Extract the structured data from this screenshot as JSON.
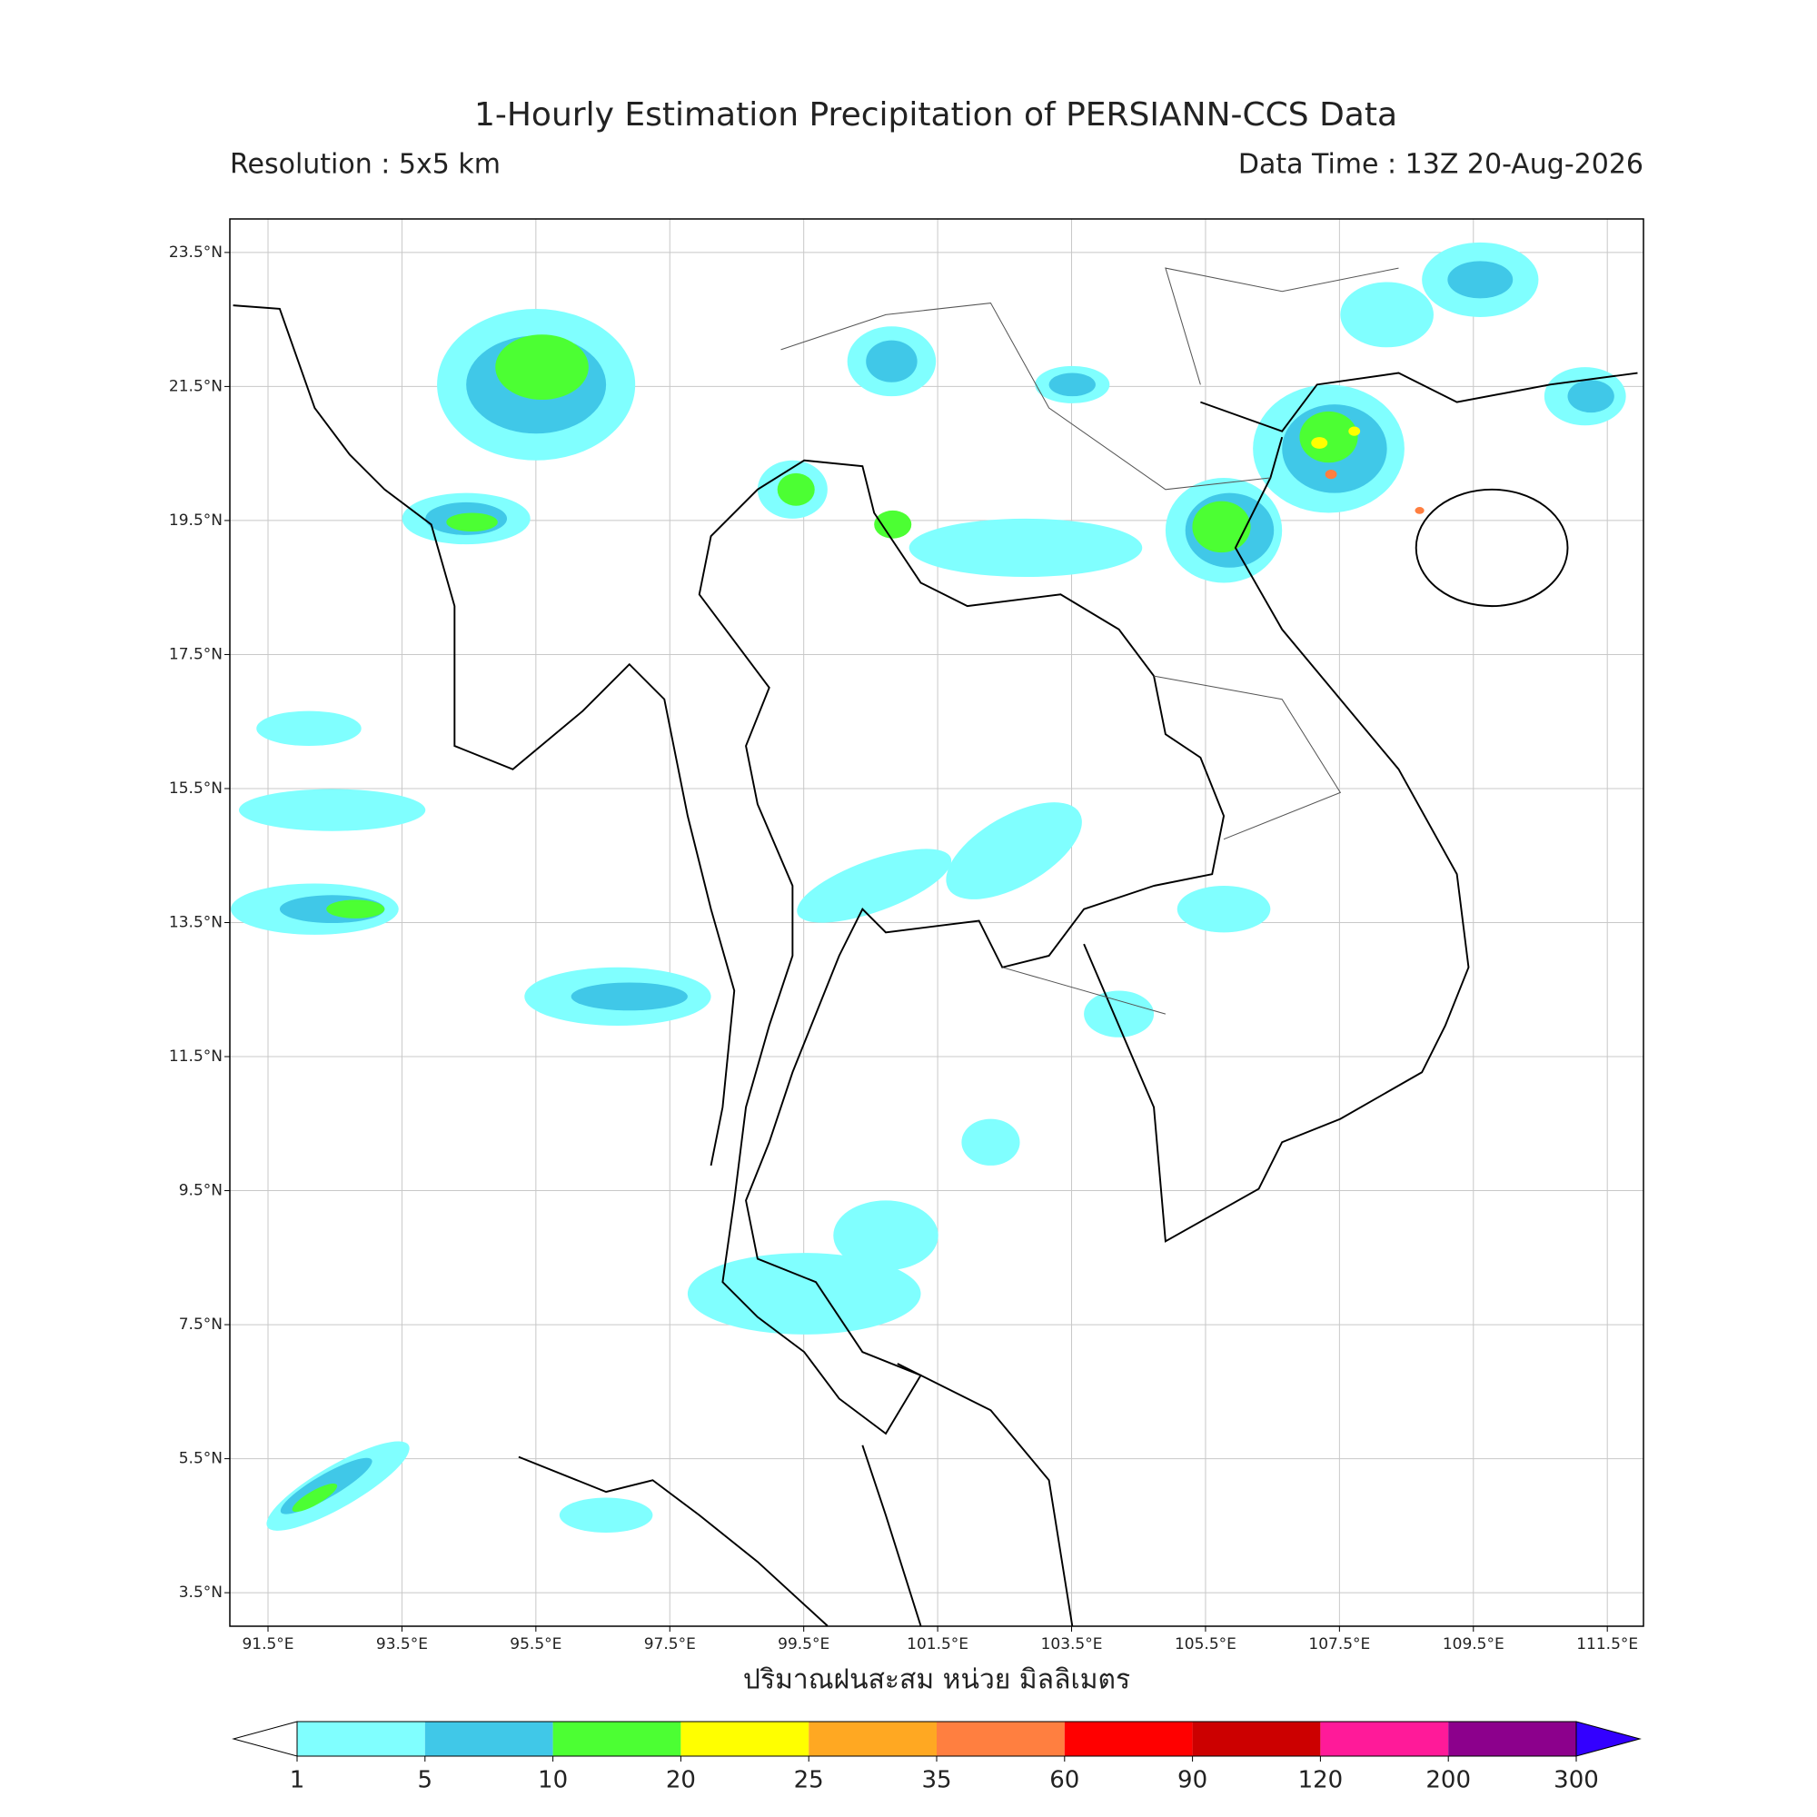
{
  "map": {
    "title": "1-Hourly Estimation Precipitation of PERSIANN-CCS Data",
    "subtitle_left": "Resolution : 5x5 km",
    "subtitle_right": "Data Time : 13Z 20-Aug-2026",
    "xlabel": "ปริมาณฝนสะสม หน่วย มิลลิเมตร",
    "xlim": [
      90.93,
      112.04
    ],
    "ylim": [
      3.0,
      24.0
    ],
    "xticks": [
      {
        "value": 91.5,
        "label": "91.5°E"
      },
      {
        "value": 93.5,
        "label": "93.5°E"
      },
      {
        "value": 95.5,
        "label": "95.5°E"
      },
      {
        "value": 97.5,
        "label": "97.5°E"
      },
      {
        "value": 99.5,
        "label": "99.5°E"
      },
      {
        "value": 101.5,
        "label": "101.5°E"
      },
      {
        "value": 103.5,
        "label": "103.5°E"
      },
      {
        "value": 105.5,
        "label": "105.5°E"
      },
      {
        "value": 107.5,
        "label": "107.5°E"
      },
      {
        "value": 109.5,
        "label": "109.5°E"
      },
      {
        "value": 111.5,
        "label": "111.5°E"
      }
    ],
    "yticks": [
      {
        "value": 3.5,
        "label": "3.5°N"
      },
      {
        "value": 5.5,
        "label": "5.5°N"
      },
      {
        "value": 7.5,
        "label": "7.5°N"
      },
      {
        "value": 9.5,
        "label": "9.5°N"
      },
      {
        "value": 11.5,
        "label": "11.5°N"
      },
      {
        "value": 13.5,
        "label": "13.5°N"
      },
      {
        "value": 15.5,
        "label": "15.5°N"
      },
      {
        "value": 17.5,
        "label": "17.5°N"
      },
      {
        "value": 19.5,
        "label": "19.5°N"
      },
      {
        "value": 21.5,
        "label": "21.5°N"
      },
      {
        "value": 23.5,
        "label": "23.5°N"
      }
    ],
    "grid": true,
    "colorbar": {
      "levels": [
        1,
        5,
        10,
        20,
        25,
        35,
        60,
        90,
        120,
        200,
        300
      ],
      "colors": [
        "#80ffff",
        "#40c8e8",
        "#4cff33",
        "#ffff00",
        "#ffa822",
        "#ff7f40",
        "#ff0000",
        "#cc0000",
        "#ff1a99",
        "#8c008c"
      ],
      "under_color": "#ffffff",
      "over_color": "#3300ff"
    }
  }
}
